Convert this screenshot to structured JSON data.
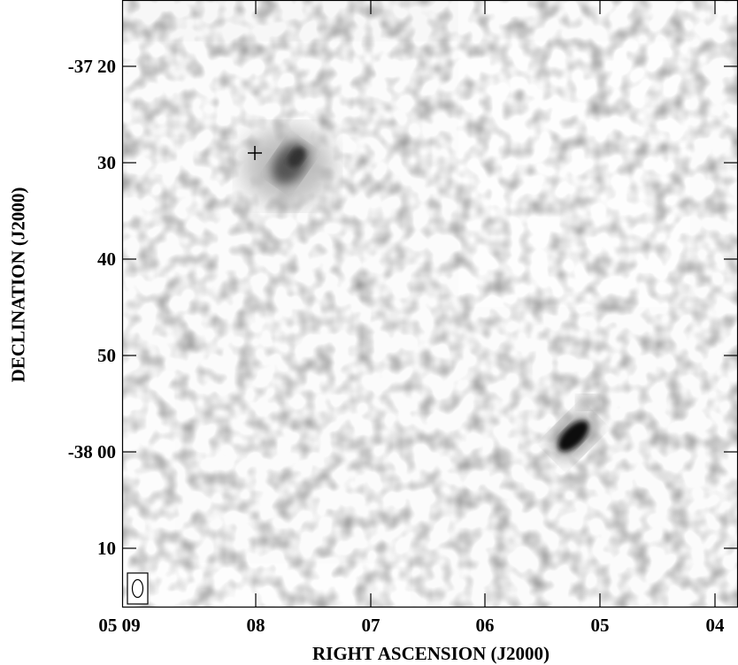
{
  "figure": {
    "y_axis_label": "DECLINATION (J2000)",
    "x_axis_label": "RIGHT ASCENSION (J2000)",
    "y_ticks": [
      "-37 20",
      "30",
      "40",
      "50",
      "-38 00",
      "10"
    ],
    "x_ticks": [
      "05 09",
      "08",
      "07",
      "06",
      "05",
      "04"
    ]
  },
  "image": {
    "colormap": "greyscale (white = low, black = high)",
    "sources": [
      "extended diffuse emission near RA 05 07.6, Dec -37 30",
      "compact source near RA 05 05.2, Dec -37 59"
    ],
    "marker": "cross symbol near RA 05 08.0, Dec -37 29"
  }
}
